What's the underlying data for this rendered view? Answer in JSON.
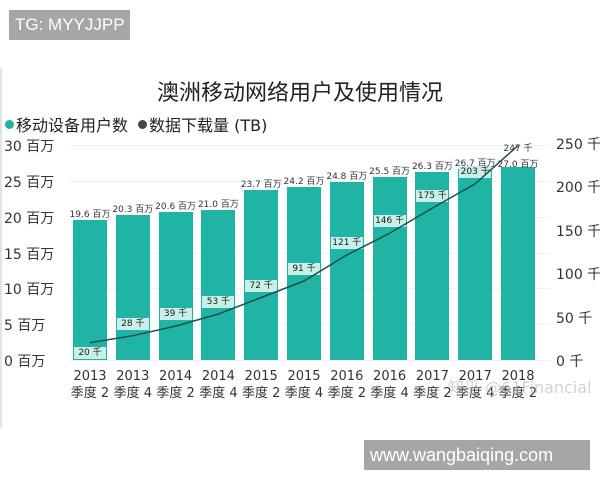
{
  "overlays": {
    "top_tag": "TG: MYYJJPP",
    "bottom_tag": "www.wangbaiqing.com",
    "watermark": "知乎 @61Financial"
  },
  "chart_data": {
    "type": "bar",
    "title": "澳洲移动网络用户及使用情况",
    "legend": [
      {
        "label": "移动设备用户数",
        "color": "#1fb4a3",
        "marker": "dot"
      },
      {
        "label": "数据下载量 (TB)",
        "color": "#3a4a4a",
        "marker": "dot"
      }
    ],
    "legend_position": "top-left",
    "categories": [
      "2013 季度 2",
      "2013 季度 4",
      "2014 季度 2",
      "2014 季度 4",
      "2015 季度 2",
      "2015 季度 4",
      "2016 季度 2",
      "2016 季度 4",
      "2017 季度 2",
      "2017 季度 4",
      "2018 季度 2"
    ],
    "category_lines": [
      [
        "2013",
        "季度 2"
      ],
      [
        "2013",
        "季度 4"
      ],
      [
        "2014",
        "季度 2"
      ],
      [
        "2014",
        "季度 4"
      ],
      [
        "2015",
        "季度 2"
      ],
      [
        "2015",
        "季度 4"
      ],
      [
        "2016",
        "季度 2"
      ],
      [
        "2016",
        "季度 4"
      ],
      [
        "2017",
        "季度 2"
      ],
      [
        "2017",
        "季度 4"
      ],
      [
        "2018",
        "季度 2"
      ]
    ],
    "series": [
      {
        "name": "移动设备用户数",
        "type": "bar",
        "axis": "left",
        "unit": "百万",
        "values": [
          19.6,
          20.3,
          20.6,
          21.0,
          23.7,
          24.2,
          24.8,
          25.5,
          26.3,
          26.7,
          27.0
        ],
        "labels": [
          "19.6 百万",
          "20.3 百万",
          "20.6 百万",
          "21.0 百万",
          "23.7 百万",
          "24.2 百万",
          "24.8 百万",
          "25.5 百万",
          "26.3 百万",
          "26.7 百万",
          "27.0 百万"
        ]
      },
      {
        "name": "数据下载量 (TB)",
        "type": "line",
        "axis": "right",
        "unit": "千",
        "values": [
          20,
          28,
          39,
          53,
          72,
          91,
          121,
          146,
          175,
          203,
          247
        ],
        "labels": [
          "20 千",
          "28 千",
          "39 千",
          "53 千",
          "72 千",
          "91 千",
          "121 千",
          "146 千",
          "175 千",
          "203 千",
          "247 千"
        ]
      }
    ],
    "left_axis": {
      "ticks": [
        "0 百万",
        "5 百万",
        "10 百万",
        "15 百万",
        "20 百万",
        "25 百万",
        "30 百万"
      ],
      "ylim": [
        0,
        30
      ]
    },
    "right_axis": {
      "ticks": [
        "0 千",
        "50 千",
        "100 千",
        "150 千",
        "200 千",
        "250 千"
      ],
      "ylim": [
        0,
        250
      ]
    },
    "grid": true,
    "xlabel": "",
    "ylabel": ""
  }
}
